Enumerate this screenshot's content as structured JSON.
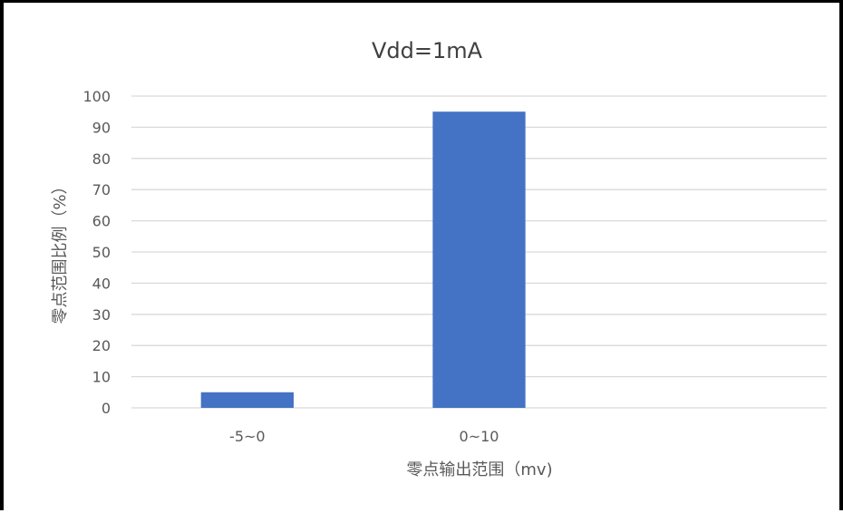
{
  "chart_data": {
    "type": "bar",
    "title": "Vdd=1mA",
    "xlabel": "零点输出范围（mv)",
    "ylabel": "零点范围比例（%）",
    "categories": [
      "-5~0",
      "0~10",
      ""
    ],
    "series": [
      {
        "values": [
          5,
          95,
          null
        ]
      }
    ],
    "ylim": [
      0,
      100
    ],
    "yticks": [
      0,
      10,
      20,
      30,
      40,
      50,
      60,
      70,
      80,
      90,
      100
    ],
    "grid": true,
    "legend": "none",
    "colors": {
      "bar": "#4472C4",
      "gridline": "#D9D9D9",
      "text": "#595959",
      "title": "#404040",
      "frame": "#000000"
    }
  }
}
